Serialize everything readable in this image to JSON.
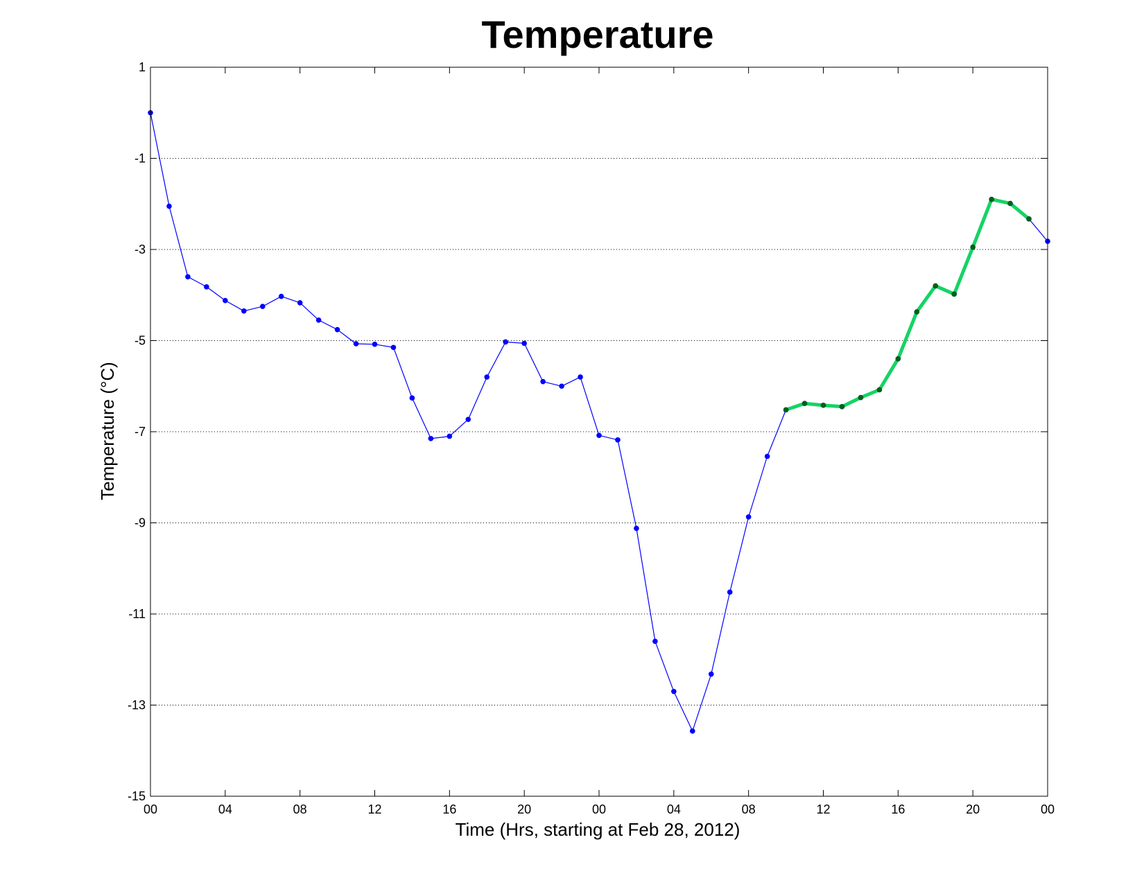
{
  "chart_data": {
    "type": "line",
    "title": "Temperature",
    "xlabel": "Time (Hrs, starting at Feb 28, 2012)",
    "ylabel": "Temperature (°C)",
    "ylim": [
      -15,
      1
    ],
    "xlim": [
      0,
      48
    ],
    "yticks": [
      1,
      -1,
      -3,
      -5,
      -7,
      -9,
      -11,
      -13,
      -15
    ],
    "xticks": [
      0,
      4,
      8,
      12,
      16,
      20,
      24,
      28,
      32,
      36,
      40,
      44,
      48
    ],
    "xtick_labels": [
      "00",
      "04",
      "08",
      "12",
      "16",
      "20",
      "00",
      "04",
      "08",
      "12",
      "16",
      "20",
      "00"
    ],
    "grid": "y-dotted",
    "series": [
      {
        "color": "#0000ff",
        "x": [
          0,
          1,
          2,
          3,
          4,
          5,
          6,
          7,
          8,
          9,
          10,
          11,
          12,
          13,
          14,
          15,
          16,
          17,
          18,
          19,
          20,
          21,
          22,
          23,
          24,
          25,
          26,
          27,
          28,
          29,
          30,
          31,
          32,
          33,
          34,
          35,
          36,
          37,
          38,
          39,
          40,
          41,
          42,
          43,
          44,
          45,
          46,
          47,
          48
        ],
        "values": [
          0.0,
          -2.05,
          -3.6,
          -3.82,
          -4.12,
          -4.35,
          -4.25,
          -4.03,
          -4.17,
          -4.55,
          -4.76,
          -5.07,
          -5.08,
          -5.15,
          -6.26,
          -7.15,
          -7.1,
          -6.73,
          -5.8,
          -5.03,
          -5.06,
          -5.9,
          -6.0,
          -5.8,
          -7.08,
          -7.18,
          -9.12,
          -11.6,
          -12.7,
          -13.57,
          -12.32,
          -10.52,
          -8.87,
          -7.54,
          -6.52,
          -6.38,
          -6.42,
          -6.45,
          -6.25,
          -6.08,
          -5.4,
          -4.37,
          -3.8,
          -3.98,
          -2.95,
          -1.9,
          -1.99,
          -2.33,
          -2.82
        ]
      },
      {
        "color": "#14d464",
        "marker_color": "#006400",
        "x": [
          34,
          35,
          36,
          37,
          38,
          39,
          40,
          41,
          42,
          43,
          44,
          45,
          46,
          47
        ],
        "values": [
          -6.52,
          -6.38,
          -6.42,
          -6.45,
          -6.25,
          -6.08,
          -5.4,
          -4.37,
          -3.8,
          -3.98,
          -2.95,
          -1.9,
          -1.99,
          -2.33
        ]
      }
    ]
  }
}
